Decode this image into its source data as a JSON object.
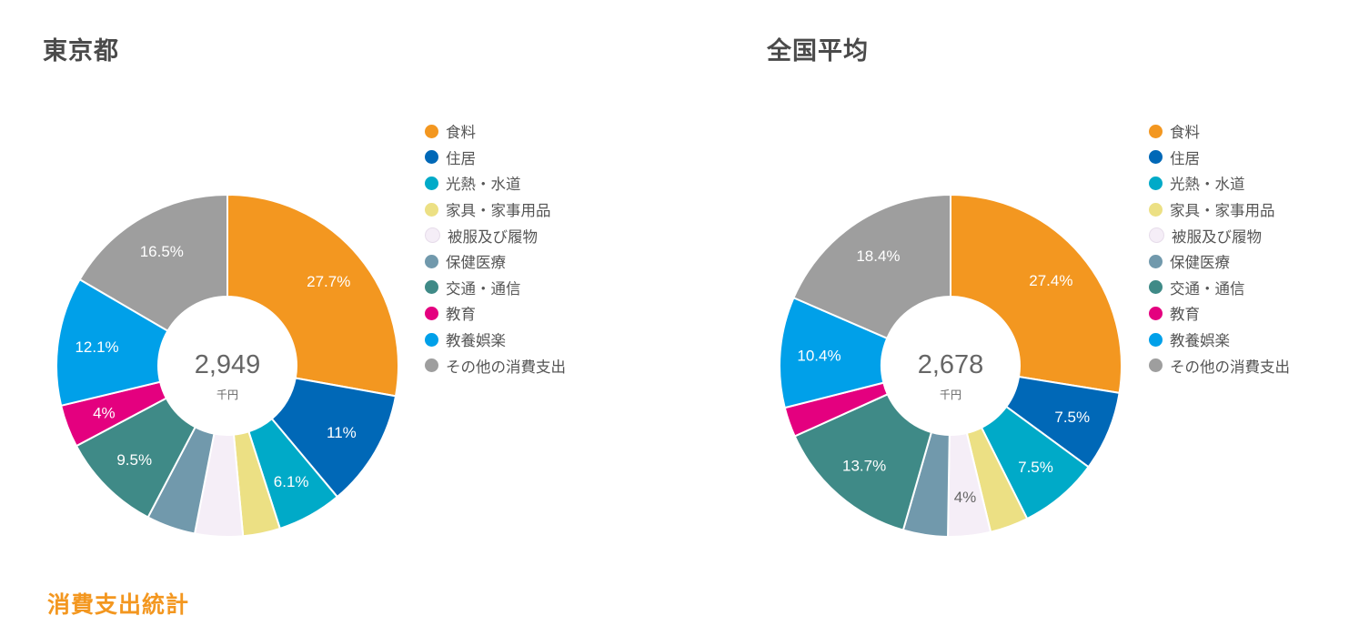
{
  "section_heading": "消費支出統計",
  "chart_data": [
    {
      "type": "pie",
      "title": "東京都",
      "center_total": "2,949",
      "center_unit": "千円",
      "categories": [
        "食料",
        "住居",
        "光熱・水道",
        "家具・家事用品",
        "被服及び履物",
        "保健医療",
        "交通・通信",
        "教育",
        "教養娯楽",
        "その他の消費支出"
      ],
      "values": [
        27.7,
        11,
        6.1,
        3.5,
        4.5,
        4.6,
        9.5,
        4,
        12.1,
        16.5
      ],
      "labels": [
        "27.7%",
        "11%",
        "6.1%",
        "",
        "",
        "",
        "9.5%",
        "4%",
        "12.1%",
        "16.5%"
      ],
      "colors": [
        "#f39720",
        "#0068b7",
        "#00aac8",
        "#ece084",
        "#f5eef7",
        "#7199ac",
        "#3f8a87",
        "#e4007f",
        "#00a0e9",
        "#9e9e9e"
      ],
      "label_colors": [
        "#ffffff",
        "#ffffff",
        "#ffffff",
        "#ffffff",
        "#ffffff",
        "#ffffff",
        "#ffffff",
        "#ffffff",
        "#ffffff",
        "#ffffff"
      ],
      "legend_placement": "right"
    },
    {
      "type": "pie",
      "title": "全国平均",
      "center_total": "2,678",
      "center_unit": "千円",
      "categories": [
        "食料",
        "住居",
        "光熱・水道",
        "家具・家事用品",
        "被服及び履物",
        "保健医療",
        "交通・通信",
        "教育",
        "教養娯楽",
        "その他の消費支出"
      ],
      "values": [
        27.4,
        7.5,
        7.5,
        3.6,
        4,
        4.2,
        13.7,
        2.8,
        10.4,
        18.4
      ],
      "labels": [
        "27.4%",
        "7.5%",
        "7.5%",
        "",
        "4%",
        "",
        "13.7%",
        "",
        "10.4%",
        "18.4%"
      ],
      "colors": [
        "#f39720",
        "#0068b7",
        "#00aac8",
        "#ece084",
        "#f5eef7",
        "#7199ac",
        "#3f8a87",
        "#e4007f",
        "#00a0e9",
        "#9e9e9e"
      ],
      "label_colors": [
        "#ffffff",
        "#ffffff",
        "#ffffff",
        "#ffffff",
        "#666666",
        "#ffffff",
        "#ffffff",
        "#ffffff",
        "#ffffff",
        "#ffffff"
      ],
      "legend_placement": "right"
    }
  ]
}
